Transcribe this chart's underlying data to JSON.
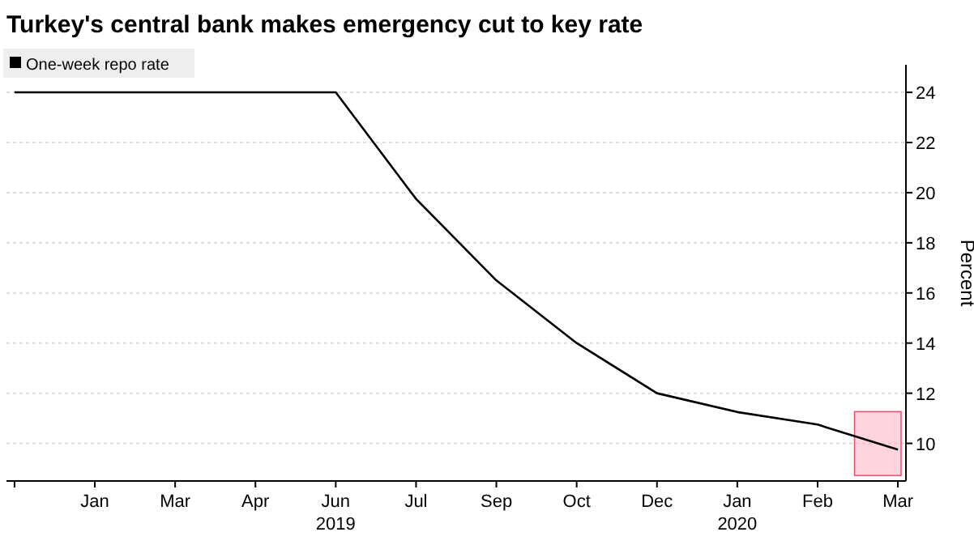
{
  "chart_data": {
    "type": "line",
    "title": "Turkey's central bank makes emergency cut to key rate",
    "ylabel": "Percent",
    "categories": [
      null,
      "Jan",
      "Mar",
      "Apr",
      "Jun\n2019",
      "Jul",
      "Sep",
      "Oct",
      "Dec",
      "Jan\n2020",
      "Feb",
      "Mar"
    ],
    "series": [
      {
        "name": "One-week repo rate",
        "color": "#000000",
        "values": [
          24,
          24,
          24,
          24,
          24,
          19.75,
          16.5,
          14,
          12,
          11.25,
          10.75,
          9.75
        ]
      }
    ],
    "ylim": [
      8.5,
      25.1
    ],
    "yticks": [
      10,
      12,
      14,
      16,
      18,
      20,
      22,
      24
    ],
    "grid": "y",
    "legend": "top left"
  }
}
